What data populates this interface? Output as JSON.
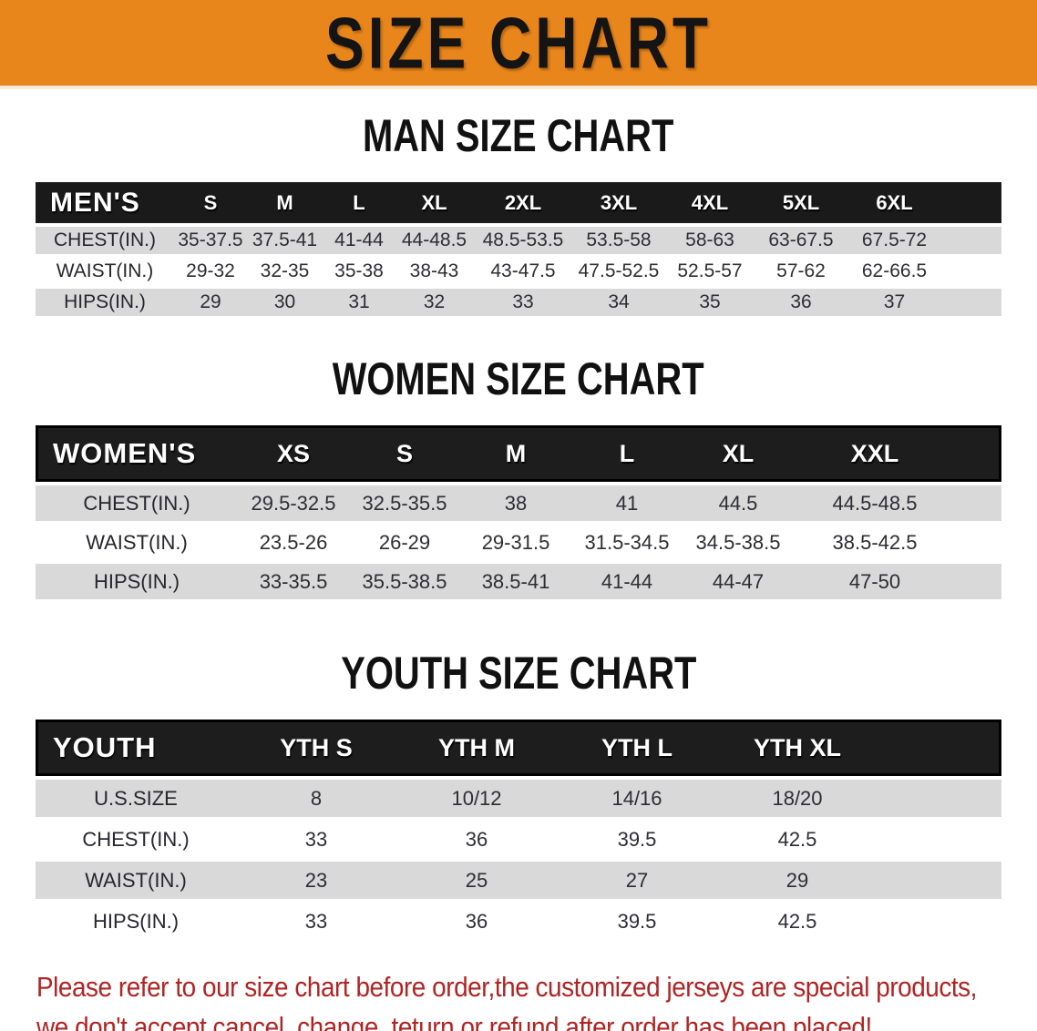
{
  "banner": {
    "title": "SIZE CHART",
    "bg_color": "#e8861c",
    "text_color": "#141414"
  },
  "sections": {
    "men": {
      "title": "MAN SIZE CHART",
      "header_label": "MEN'S",
      "sizes": [
        "S",
        "M",
        "L",
        "XL",
        "2XL",
        "3XL",
        "4XL",
        "5XL",
        "6XL"
      ],
      "rows": [
        {
          "label": "CHEST(IN.)",
          "values": [
            "35-37.5",
            "37.5-41",
            "41-44",
            "44-48.5",
            "48.5-53.5",
            "53.5-58",
            "58-63",
            "63-67.5",
            "67.5-72"
          ]
        },
        {
          "label": "WAIST(IN.)",
          "values": [
            "29-32",
            "32-35",
            "35-38",
            "38-43",
            "43-47.5",
            "47.5-52.5",
            "52.5-57",
            "57-62",
            "62-66.5"
          ]
        },
        {
          "label": "HIPS(IN.)",
          "values": [
            "29",
            "30",
            "31",
            "32",
            "33",
            "34",
            "35",
            "36",
            "37"
          ]
        }
      ]
    },
    "women": {
      "title": "WOMEN SIZE CHART",
      "header_label": "WOMEN'S",
      "sizes": [
        "XS",
        "S",
        "M",
        "L",
        "XL",
        "XXL"
      ],
      "rows": [
        {
          "label": "CHEST(IN.)",
          "values": [
            "29.5-32.5",
            "32.5-35.5",
            "38",
            "41",
            "44.5",
            "44.5-48.5"
          ]
        },
        {
          "label": "WAIST(IN.)",
          "values": [
            "23.5-26",
            "26-29",
            "29-31.5",
            "31.5-34.5",
            "34.5-38.5",
            "38.5-42.5"
          ]
        },
        {
          "label": "HIPS(IN.)",
          "values": [
            "33-35.5",
            "35.5-38.5",
            "38.5-41",
            "41-44",
            "44-47",
            "47-50"
          ]
        }
      ]
    },
    "youth": {
      "title": "YOUTH SIZE CHART",
      "header_label": "YOUTH",
      "sizes": [
        "YTH S",
        "YTH M",
        "YTH L",
        "YTH XL"
      ],
      "rows": [
        {
          "label": "U.S.SIZE",
          "values": [
            "8",
            "10/12",
            "14/16",
            "18/20"
          ]
        },
        {
          "label": "CHEST(IN.)",
          "values": [
            "33",
            "36",
            "39.5",
            "42.5"
          ]
        },
        {
          "label": "WAIST(IN.)",
          "values": [
            "23",
            "25",
            "27",
            "29"
          ]
        },
        {
          "label": "HIPS(IN.)",
          "values": [
            "33",
            "36",
            "39.5",
            "42.5"
          ]
        }
      ]
    }
  },
  "disclaimer": {
    "line1": "Please refer to our size chart before order,the customized jerseys are special products,",
    "line2": "we don't accept cancel, change, teturn or refund after order has been placed!",
    "color": "#b02424"
  }
}
